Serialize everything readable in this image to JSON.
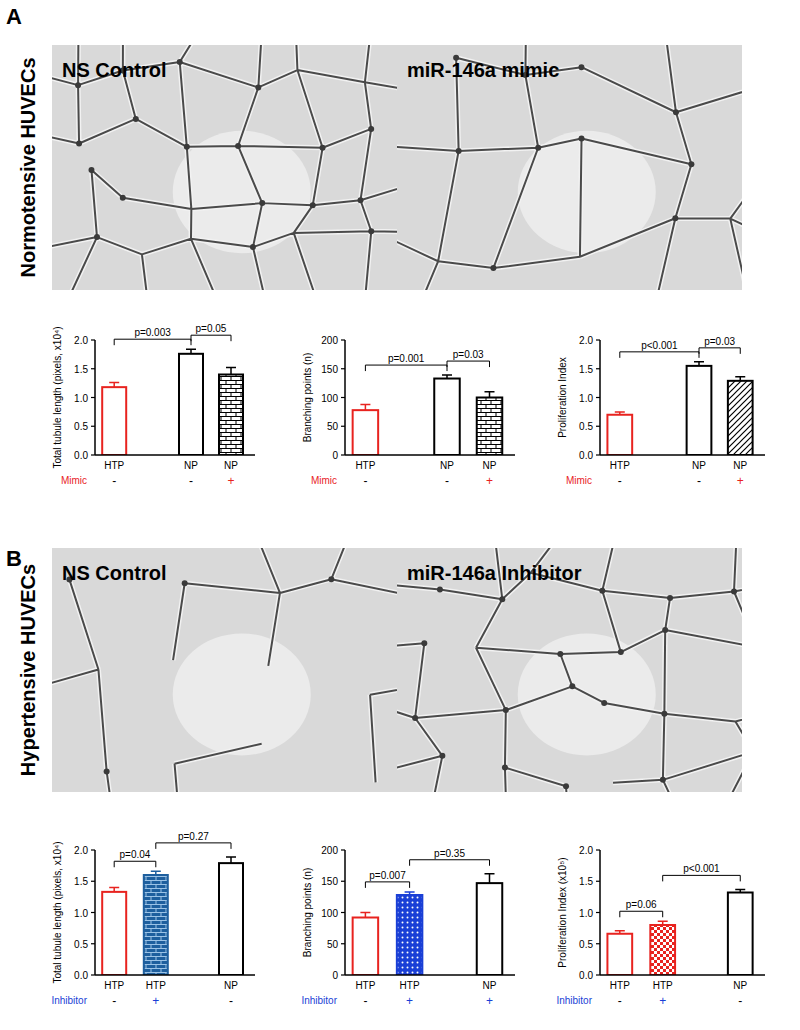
{
  "panels": [
    {
      "label": "A",
      "row_label": "Normotensive HUVECs",
      "images": [
        "NS Control",
        "miR-146a mimic"
      ]
    },
    {
      "label": "B",
      "row_label": "Hypertensive HUVECs",
      "images": [
        "NS Control",
        "miR-146a Inhibitor"
      ]
    }
  ],
  "chart_data": [
    {
      "type": "bar",
      "ylabel": "Total tubule length (pixels, x10⁴)",
      "categories": [
        "HTP",
        "NP",
        "NP"
      ],
      "values": [
        1.18,
        1.76,
        1.4
      ],
      "errors": [
        0.08,
        0.08,
        0.12
      ],
      "colors": [
        "#e8231f",
        "#000000",
        "#000000"
      ],
      "ylim": [
        0,
        2.0
      ],
      "yticks": [
        {
          "value": 0,
          "label": "0.0"
        },
        {
          "value": 0.5,
          "label": "0.5"
        },
        {
          "value": 1.0,
          "label": "1.0"
        },
        {
          "value": 1.5,
          "label": "1.5"
        },
        {
          "value": 2.0,
          "label": "2.0"
        }
      ],
      "treatment": {
        "label": "Mimic",
        "color": "#e8231f",
        "values": [
          "-",
          "-",
          "+"
        ]
      },
      "annotations": [
        {
          "from": 0,
          "to": 1,
          "text": "p=0.003"
        },
        {
          "from": 1,
          "to": 2,
          "text": "p=0.05"
        }
      ]
    },
    {
      "type": "bar",
      "ylabel": "Branching points (n)",
      "categories": [
        "HTP",
        "NP",
        "NP"
      ],
      "values": [
        78,
        133,
        100
      ],
      "errors": [
        10,
        6,
        10
      ],
      "colors": [
        "#e8231f",
        "#000000",
        "#000000"
      ],
      "ylim": [
        0,
        200
      ],
      "yticks": [
        0,
        50,
        100,
        150,
        200
      ],
      "treatment": {
        "label": "Mimic",
        "color": "#e8231f",
        "values": [
          "-",
          "-",
          "+"
        ]
      },
      "annotations": [
        {
          "from": 0,
          "to": 1,
          "text": "p=0.001"
        },
        {
          "from": 1,
          "to": 2,
          "text": "p=0.03"
        }
      ]
    },
    {
      "type": "bar",
      "ylabel": "Proliferation Index",
      "categories": [
        "HTP",
        "NP",
        "NP"
      ],
      "values": [
        0.7,
        1.55,
        1.29
      ],
      "errors": [
        0.05,
        0.07,
        0.07
      ],
      "colors": [
        "#e8231f",
        "#000000",
        "#000000"
      ],
      "ylim": [
        0,
        2.0
      ],
      "yticks": [
        {
          "value": 0,
          "label": "0.0"
        },
        {
          "value": 0.5,
          "label": "0.5"
        },
        {
          "value": 1.0,
          "label": "1.0"
        },
        {
          "value": 1.5,
          "label": "1.5"
        },
        {
          "value": 2.0,
          "label": "2.0"
        }
      ],
      "treatment": {
        "label": "Mimic",
        "color": "#e8231f",
        "values": [
          "-",
          "-",
          "+"
        ]
      },
      "annotations": [
        {
          "from": 0,
          "to": 1,
          "text": "p<0.001"
        },
        {
          "from": 1,
          "to": 2,
          "text": "p=0.03"
        }
      ]
    },
    {
      "type": "bar",
      "ylabel": "Total tubule length (pixels, x10⁴)",
      "categories": [
        "HTP",
        "HTP",
        "NP"
      ],
      "values": [
        1.33,
        1.6,
        1.79
      ],
      "errors": [
        0.07,
        0.06,
        0.1
      ],
      "colors": [
        "#e8231f",
        "#1e5f9e",
        "#000000"
      ],
      "ylim": [
        0,
        2.0
      ],
      "yticks": [
        {
          "value": 0,
          "label": "0.0"
        },
        {
          "value": 0.5,
          "label": "0.5"
        },
        {
          "value": 1.0,
          "label": "1.0"
        },
        {
          "value": 1.5,
          "label": "1.5"
        },
        {
          "value": 2.0,
          "label": "2.0"
        }
      ],
      "treatment": {
        "label": "Inhibitor",
        "color": "#1a3fd6",
        "values": [
          "-",
          "+",
          "-"
        ]
      },
      "annotations": [
        {
          "from": 0,
          "to": 1,
          "text": "p=0.04"
        },
        {
          "from": 1,
          "to": 2,
          "text": "p=0.27"
        }
      ]
    },
    {
      "type": "bar",
      "ylabel": "Branching points (n)",
      "categories": [
        "HTP",
        "HTP",
        "NP"
      ],
      "values": [
        92,
        128,
        147
      ],
      "errors": [
        8,
        5,
        15
      ],
      "colors": [
        "#e8231f",
        "#1a3fd6",
        "#000000"
      ],
      "ylim": [
        0,
        200
      ],
      "yticks": [
        0,
        50,
        100,
        150,
        200
      ],
      "treatment": {
        "label": "Inhibitor",
        "color": "#1a3fd6",
        "values": [
          "-",
          "+",
          "+"
        ]
      },
      "annotations": [
        {
          "from": 0,
          "to": 1,
          "text": "p=0.007"
        },
        {
          "from": 1,
          "to": 2,
          "text": "p=0.35"
        }
      ]
    },
    {
      "type": "bar",
      "ylabel": "Proliferation Index (x10⁵)",
      "categories": [
        "HTP",
        "HTP",
        "NP"
      ],
      "values": [
        0.66,
        0.8,
        1.32
      ],
      "errors": [
        0.05,
        0.06,
        0.05
      ],
      "colors": [
        "#e8231f",
        "#e8231f",
        "#000000"
      ],
      "ylim": [
        0,
        2.0
      ],
      "yticks": [
        {
          "value": 0,
          "label": "0.0"
        },
        {
          "value": 0.5,
          "label": "0.5"
        },
        {
          "value": 1.0,
          "label": "1.0"
        },
        {
          "value": 1.5,
          "label": "1.5"
        },
        {
          "value": 2.0,
          "label": "2.0"
        }
      ],
      "treatment": {
        "label": "Inhibitor",
        "color": "#1a3fd6",
        "values": [
          "-",
          "+",
          "-"
        ]
      },
      "annotations": [
        {
          "from": 0,
          "to": 1,
          "text": "p=0.06"
        },
        {
          "from": 1,
          "to": 2,
          "text": "p<0.001"
        }
      ]
    }
  ]
}
